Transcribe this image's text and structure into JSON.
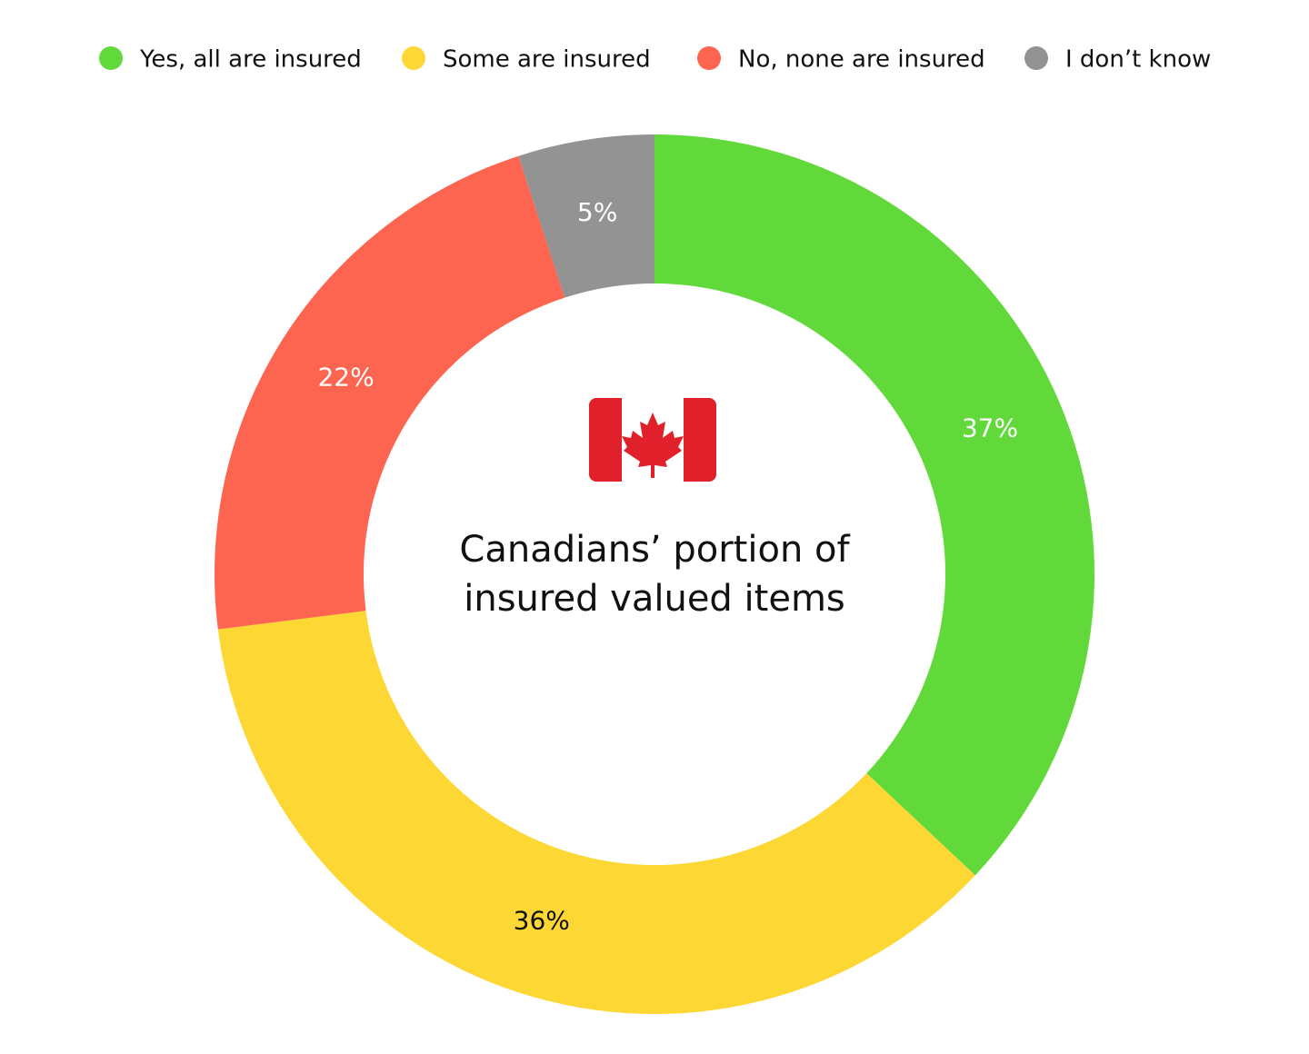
{
  "chart_data": {
    "type": "donut",
    "title": "Canadians’ portion of insured valued items",
    "categories": [
      "Yes, all are insured",
      "Some are insured",
      "No, none are insured",
      "I don’t know"
    ],
    "values": [
      37,
      36,
      22,
      5
    ],
    "value_labels": [
      "37%",
      "36%",
      "22%",
      "5%"
    ],
    "colors": [
      "#62d93a",
      "#fdd733",
      "#fe6550",
      "#939393"
    ],
    "legend": "top"
  }
}
